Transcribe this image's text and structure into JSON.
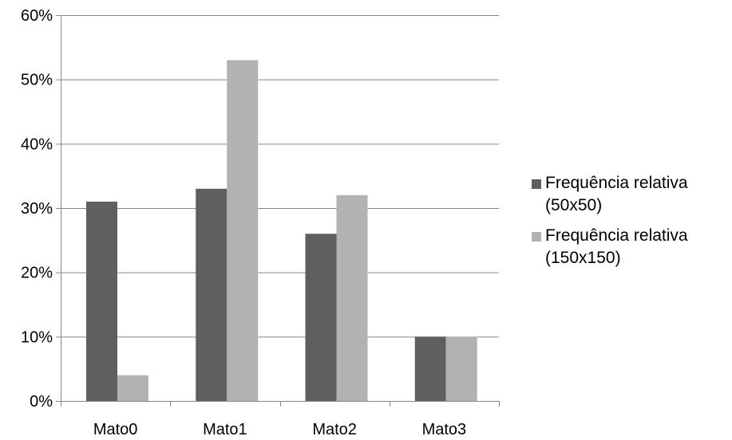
{
  "chart_data": {
    "type": "bar",
    "categories": [
      "Mato0",
      "Mato1",
      "Mato2",
      "Mato3"
    ],
    "series": [
      {
        "name": "Frequência relativa (50x50)",
        "values": [
          31,
          33,
          26,
          10
        ],
        "color": "#5f5f5f"
      },
      {
        "name": "Frequência relativa (150x150)",
        "values": [
          4,
          53,
          32,
          10
        ],
        "color": "#b2b2b2"
      }
    ],
    "ylim": [
      0,
      60
    ],
    "yticks": [
      0,
      10,
      20,
      30,
      40,
      50,
      60
    ],
    "ytick_labels": [
      "0%",
      "10%",
      "20%",
      "30%",
      "40%",
      "50%",
      "60%"
    ],
    "grid": true,
    "grid_color": "#878787",
    "legend_position": "right"
  }
}
